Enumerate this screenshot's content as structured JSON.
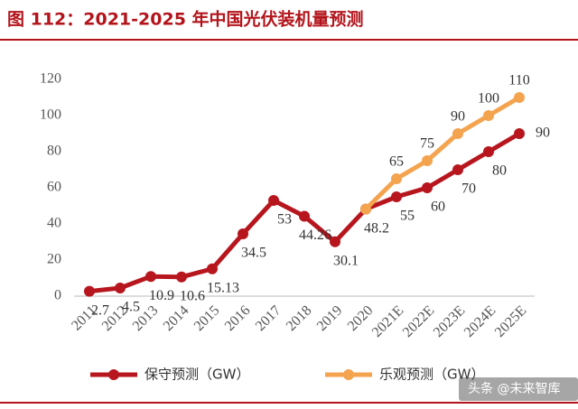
{
  "chart_data": {
    "type": "line",
    "title": "图 112：2021-2025 年中国光伏装机量预测",
    "categories": [
      "2011",
      "2012",
      "2013",
      "2014",
      "2015",
      "2016",
      "2017",
      "2018",
      "2019",
      "2020",
      "2021E",
      "2022E",
      "2023E",
      "2024E",
      "2025E"
    ],
    "series": [
      {
        "name": "保守预测（GW）",
        "color": "#b7161e",
        "values": [
          2.7,
          4.5,
          10.9,
          10.6,
          15.13,
          34.5,
          53,
          44.26,
          30.1,
          48.2,
          55,
          60,
          70,
          80,
          90
        ]
      },
      {
        "name": "乐观预测（GW）",
        "color": "#f4a34f",
        "values": [
          null,
          null,
          null,
          null,
          null,
          null,
          null,
          null,
          null,
          48.2,
          65,
          75,
          90,
          100,
          110
        ]
      }
    ],
    "ylim": [
      0,
      120
    ],
    "yticks": [
      0,
      20,
      40,
      60,
      80,
      100,
      120
    ],
    "grid": false,
    "legend": "bottom",
    "watermark": "头条 @未来智库"
  }
}
